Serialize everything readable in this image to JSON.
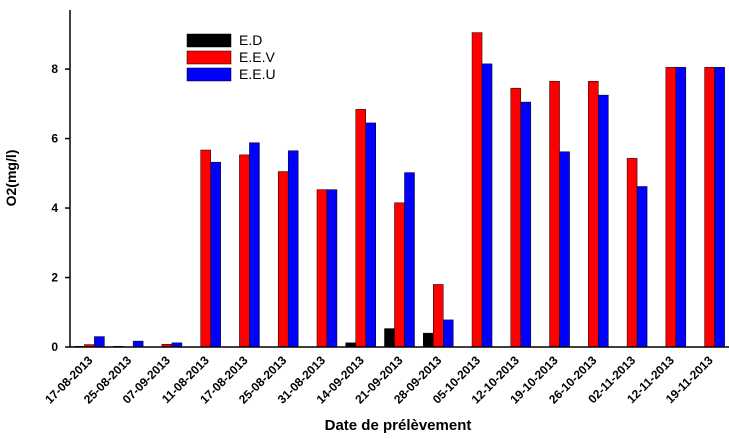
{
  "chart_data": {
    "type": "bar",
    "x_label": "Date de prélèvement",
    "y_label": "O2(mg/l)",
    "categories": [
      "17-08-2013",
      "25-08-2013",
      "07-09-2013",
      "11-08-2013",
      "17-08-2013",
      "25-08-2013",
      "31-08-2013",
      "14-09-2013",
      "21-09-2013",
      "28-09-2013",
      "05-10-2013",
      "12-10-2013",
      "19-10-2013",
      "26-10-2013",
      "02-11-2013",
      "12-11-2013",
      "19-11-2013"
    ],
    "series": [
      {
        "name": "E.D",
        "color": "#000000",
        "values": [
          0.02,
          0.02,
          0,
          0,
          0,
          0,
          0,
          0.12,
          0.53,
          0.4,
          0,
          0,
          0,
          0,
          0,
          0,
          0
        ]
      },
      {
        "name": "E.E.V",
        "color": "#ff0000",
        "values": [
          0.07,
          0,
          0.08,
          5.67,
          5.53,
          5.05,
          4.53,
          6.84,
          4.15,
          1.8,
          9.05,
          7.45,
          7.65,
          7.65,
          5.43,
          8.05,
          8.05
        ]
      },
      {
        "name": "E.E.U",
        "color": "#0000ff",
        "values": [
          0.3,
          0.17,
          0.12,
          5.32,
          5.88,
          5.65,
          4.53,
          6.45,
          5.02,
          0.78,
          8.15,
          7.05,
          5.62,
          7.25,
          4.62,
          8.05,
          8.05
        ]
      }
    ],
    "ylim": [
      0,
      9.7
    ],
    "yticks": [
      0,
      2,
      4,
      6,
      8
    ],
    "legend": "top-left"
  }
}
